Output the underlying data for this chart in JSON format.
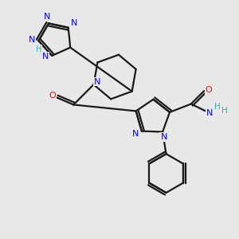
{
  "bg_color": "#e8e8e8",
  "bond_color": "#1a1a1a",
  "N_color": "#0000ff",
  "O_color": "#ff0000",
  "H_color": "#3aabab",
  "figsize": [
    3.0,
    3.0
  ],
  "dpi": 100,
  "xlim": [
    0,
    10
  ],
  "ylim": [
    0,
    10
  ]
}
